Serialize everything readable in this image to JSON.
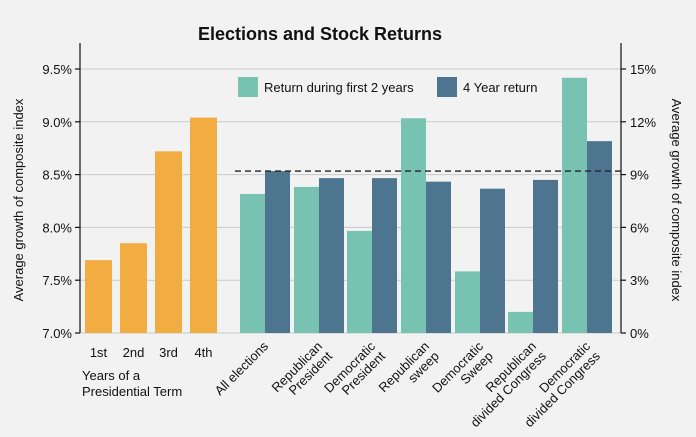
{
  "chart_data": {
    "type": "bar",
    "title": "Elections and Stock Returns",
    "ylabel_left": "Average growth of composite index",
    "ylabel_right": "Average growth of composite index",
    "ylim_left": [
      7.0,
      9.5
    ],
    "yticks_left": [
      "7.0%",
      "7.5%",
      "8.0%",
      "8.5%",
      "9.0%",
      "9.5%"
    ],
    "ylim_right": [
      0,
      15
    ],
    "yticks_right": [
      "0%",
      "3%",
      "6%",
      "9%",
      "12%",
      "15%"
    ],
    "grid": true,
    "legend_position": "top-center",
    "colors": {
      "term": "#f2ad42",
      "first2": "#78c2b2",
      "four": "#4e7590"
    },
    "group1": {
      "axis": "left",
      "series_name": "Years of a Presidential Term",
      "xlabel_lines": [
        "Years of a",
        "Presidential Term"
      ],
      "categories": [
        "1st",
        "2nd",
        "3rd",
        "4th"
      ],
      "values": [
        7.69,
        7.85,
        8.72,
        9.04
      ]
    },
    "group2": {
      "axis": "right",
      "categories": [
        [
          "All elections"
        ],
        [
          "Republican",
          "President"
        ],
        [
          "Democratic",
          "President"
        ],
        [
          "Republican",
          "sweep"
        ],
        [
          "Democratic",
          "Sweep"
        ],
        [
          "Republican",
          "divided Congress"
        ],
        [
          "Democratic",
          "divided Congress"
        ]
      ],
      "series": [
        {
          "name": "Return during first 2 years",
          "values": [
            7.9,
            8.3,
            5.8,
            12.2,
            3.5,
            1.2,
            14.5
          ]
        },
        {
          "name": "4 Year return",
          "values": [
            9.2,
            8.8,
            8.8,
            8.6,
            8.2,
            8.7,
            10.9
          ]
        }
      ],
      "reference_line": 9.2
    }
  }
}
